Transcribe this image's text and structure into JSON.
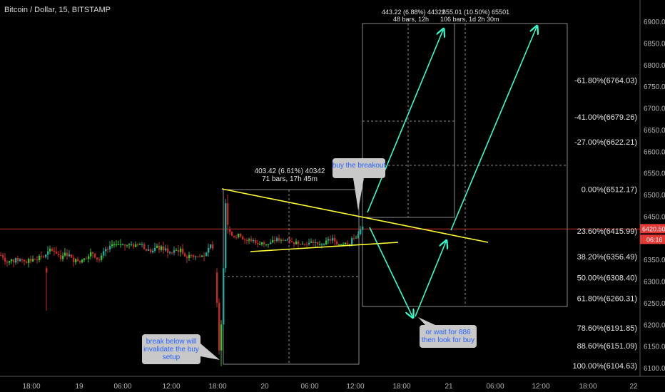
{
  "chart_data": {
    "type": "candlestick",
    "title": "Bitcoin / Dollar, 15, BITSTAMP",
    "ylim": [
      6090,
      6920
    ],
    "y_ticks": [
      6100,
      6150,
      6200,
      6250,
      6300,
      6350,
      6400,
      6450,
      6500,
      6550,
      6600,
      6650,
      6700,
      6750,
      6800,
      6850,
      6900
    ],
    "x_labels": [
      "18:00",
      "19",
      "06:00",
      "12:00",
      "18:00",
      "20",
      "06:00",
      "12:00",
      "18:00",
      "21",
      "06:00",
      "12:00",
      "18:00",
      "22"
    ],
    "current_price": {
      "value": "6420.50",
      "countdown": "06:16"
    },
    "fib_levels": [
      {
        "label": "-61.80%(6764.03)",
        "value": 6764.03
      },
      {
        "label": "-41.00%(6679.26)",
        "value": 6679.26
      },
      {
        "label": "-27.00%(6622.21)",
        "value": 6622.21
      },
      {
        "label": "0.00%(6512.17)",
        "value": 6512.17
      },
      {
        "label": "23.60%(6415.99)",
        "value": 6415.99
      },
      {
        "label": "38.20%(6356.49)",
        "value": 6356.49
      },
      {
        "label": "50.00%(6308.40)",
        "value": 6308.4
      },
      {
        "label": "61.80%(6260.31)",
        "value": 6260.31
      },
      {
        "label": "78.60%(6191.85)",
        "value": 6191.85
      },
      {
        "label": "88.60%(6151.09)",
        "value": 6151.09
      },
      {
        "label": "100.00%(6104.63)",
        "value": 6104.63
      }
    ],
    "measure_1": {
      "line1": "403.42 (6.61%) 40342",
      "line2": "71 bars, 17h 45m"
    },
    "measure_2": {
      "line1": "443.22 (6.88%) 44322",
      "line2": "48 bars, 12h",
      "line3": "655.01 (10.50%) 65501",
      "line4": "106 bars, 1d 2h 30m"
    },
    "annotations": {
      "buy_breakout": "buy the breakout",
      "break_below": [
        "break below will",
        "invalidate the buy",
        "setup"
      ],
      "or_wait": [
        "or wait for 886",
        "then look for buy"
      ]
    },
    "colors": {
      "up": "#26a69a",
      "up_bright": "#2ec82e",
      "down": "#c62828",
      "triangle": "#ffff33",
      "arrows": "#33ffcc",
      "price_line": "#e53935",
      "callout_bg": "#c8c8c8",
      "callout_text": "#2962ff"
    }
  }
}
